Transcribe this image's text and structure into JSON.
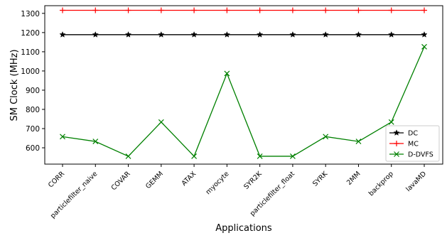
{
  "chart_data": {
    "type": "line",
    "xlabel": "Applications",
    "ylabel": "SM Clock (MHz)",
    "categories": [
      "CORR",
      "particlefilter_naive",
      "COVAR",
      "GEMM",
      "ATAX",
      "myocyte",
      "SYR2K",
      "particlefilter_float",
      "SYRK",
      "2MM",
      "backprop",
      "lavaMD"
    ],
    "ylim": [
      515,
      1340
    ],
    "yticks": [
      600,
      700,
      800,
      900,
      1000,
      1100,
      1200,
      1300
    ],
    "grid": false,
    "legend_position": "lower-right",
    "series": [
      {
        "name": "DC",
        "color": "#000000",
        "marker": "star",
        "values": [
          1189,
          1189,
          1189,
          1189,
          1189,
          1189,
          1189,
          1189,
          1189,
          1189,
          1189,
          1189
        ]
      },
      {
        "name": "MC",
        "color": "#ff0000",
        "marker": "plus",
        "values": [
          1316,
          1316,
          1316,
          1316,
          1316,
          1316,
          1316,
          1316,
          1316,
          1316,
          1316,
          1316
        ]
      },
      {
        "name": "D-DVFS",
        "color": "#008000",
        "marker": "x",
        "values": [
          658,
          633,
          556,
          734,
          556,
          987,
          556,
          556,
          658,
          633,
          734,
          1126
        ]
      }
    ]
  }
}
